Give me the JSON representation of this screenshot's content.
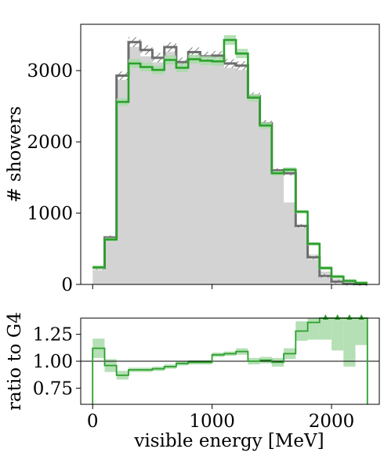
{
  "chart_data": [
    {
      "type": "histogram",
      "ylabel": "# showers",
      "xlim": [
        -100,
        2400
      ],
      "ylim": [
        0,
        3650
      ],
      "yticks": [
        0,
        1000,
        2000,
        3000
      ],
      "bin_edges": [
        0,
        100,
        200,
        300,
        400,
        500,
        600,
        700,
        800,
        900,
        1000,
        1100,
        1200,
        1300,
        1400,
        1500,
        1600,
        1700,
        1800,
        1900,
        2000,
        2100,
        2200,
        2300
      ],
      "series": [
        {
          "style": "filled-grey",
          "color": "#d3d3d3",
          "values": [
            200,
            650,
            2900,
            3350,
            3200,
            3250,
            3320,
            3100,
            3250,
            3180,
            3200,
            3080,
            3050,
            2620,
            2250,
            1580,
            1150,
            850,
            420,
            180,
            80,
            30,
            10
          ]
        },
        {
          "style": "step-dark-grey-hatched-band",
          "color": "#6e6e6e",
          "values": [
            230,
            660,
            2930,
            3400,
            3290,
            3180,
            3330,
            3120,
            3260,
            3200,
            3210,
            3100,
            3070,
            2640,
            2260,
            1600,
            1560,
            820,
            380,
            120,
            40,
            10,
            5
          ]
        },
        {
          "style": "step-green-light-band",
          "color": "#2ca02c",
          "values": [
            240,
            630,
            2560,
            3100,
            3050,
            3010,
            3150,
            3040,
            3160,
            3140,
            3130,
            3430,
            3240,
            2620,
            2230,
            1560,
            1610,
            1020,
            570,
            230,
            110,
            50,
            20
          ]
        }
      ]
    },
    {
      "type": "ratio",
      "xlabel": "visible energy [MeV]",
      "ylabel": "ratio to G4",
      "xlim": [
        -100,
        2400
      ],
      "ylim": [
        0.6,
        1.4
      ],
      "xticks": [
        0,
        1000,
        2000
      ],
      "yticks": [
        0.75,
        1.0,
        1.25
      ],
      "reference_line": 1.0,
      "bin_edges": [
        0,
        100,
        200,
        300,
        400,
        500,
        600,
        700,
        800,
        900,
        1000,
        1100,
        1200,
        1300,
        1400,
        1500,
        1600,
        1700,
        1800,
        1900,
        2000,
        2100,
        2200,
        2300
      ],
      "values": [
        1.12,
        0.96,
        0.87,
        0.92,
        0.92,
        0.93,
        0.95,
        0.98,
        0.99,
        0.99,
        1.06,
        1.07,
        1.09,
        1.0,
        1.01,
        0.99,
        1.07,
        1.28,
        1.36,
        1.4,
        1.4,
        1.4,
        1.4
      ],
      "band_halfwidth": [
        0.09,
        0.06,
        0.04,
        0.02,
        0.02,
        0.02,
        0.02,
        0.02,
        0.02,
        0.02,
        0.02,
        0.02,
        0.03,
        0.03,
        0.03,
        0.04,
        0.05,
        0.09,
        0.16,
        0.2,
        0.3,
        0.45,
        0.25
      ],
      "overflow_markers_x": [
        1950,
        2050,
        2150,
        2250
      ],
      "color": "#2ca02c"
    }
  ]
}
